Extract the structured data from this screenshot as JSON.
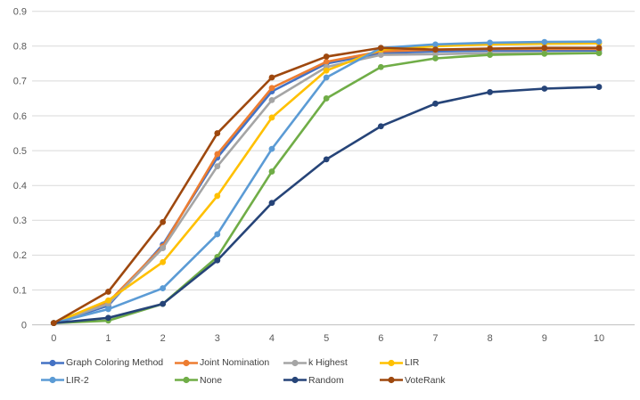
{
  "chart_data": {
    "type": "line",
    "title": "",
    "xlabel": "",
    "ylabel": "",
    "x": [
      0,
      1,
      2,
      3,
      4,
      5,
      6,
      7,
      8,
      9,
      10
    ],
    "xticks": [
      "0",
      "1",
      "2",
      "3",
      "4",
      "5",
      "6",
      "7",
      "8",
      "9",
      "10"
    ],
    "yticks": [
      "0",
      "0.1",
      "0.2",
      "0.3",
      "0.4",
      "0.5",
      "0.6",
      "0.7",
      "0.8",
      "0.9"
    ],
    "ylim": [
      0,
      0.9
    ],
    "grid": "horizontal",
    "marker": "circle",
    "legend_position": "bottom",
    "series": [
      {
        "name": "Graph Coloring Method",
        "color": "#4472C4",
        "values": [
          0.005,
          0.055,
          0.23,
          0.48,
          0.67,
          0.75,
          0.78,
          0.785,
          0.787,
          0.787,
          0.787
        ]
      },
      {
        "name": "Joint Nomination",
        "color": "#ED7D31",
        "values": [
          0.005,
          0.065,
          0.225,
          0.49,
          0.68,
          0.755,
          0.785,
          0.79,
          0.792,
          0.792,
          0.792
        ]
      },
      {
        "name": "k Highest",
        "color": "#A5A5A5",
        "values": [
          0.005,
          0.06,
          0.22,
          0.455,
          0.645,
          0.74,
          0.775,
          0.777,
          0.78,
          0.78,
          0.78
        ]
      },
      {
        "name": "LIR",
        "color": "#FFC000",
        "values": [
          0.005,
          0.07,
          0.18,
          0.37,
          0.595,
          0.73,
          0.79,
          0.8,
          0.805,
          0.807,
          0.808
        ]
      },
      {
        "name": "LIR-2",
        "color": "#5B9BD5",
        "values": [
          0.005,
          0.045,
          0.105,
          0.26,
          0.505,
          0.71,
          0.795,
          0.805,
          0.81,
          0.812,
          0.813
        ]
      },
      {
        "name": "None",
        "color": "#70AD47",
        "values": [
          0.005,
          0.012,
          0.06,
          0.195,
          0.44,
          0.65,
          0.74,
          0.765,
          0.775,
          0.778,
          0.78
        ]
      },
      {
        "name": "Random",
        "color": "#264478",
        "values": [
          0.005,
          0.02,
          0.06,
          0.185,
          0.35,
          0.475,
          0.57,
          0.635,
          0.668,
          0.678,
          0.683
        ]
      },
      {
        "name": "VoteRank",
        "color": "#9E480E",
        "values": [
          0.005,
          0.095,
          0.295,
          0.55,
          0.71,
          0.77,
          0.795,
          0.79,
          0.793,
          0.795,
          0.795
        ]
      }
    ],
    "legend_rows": [
      [
        "Graph Coloring Method",
        "Joint Nomination",
        "k Highest",
        "LIR"
      ],
      [
        "LIR-2",
        "None",
        "Random",
        "VoteRank"
      ]
    ],
    "style": {
      "grid_color": "#D9D9D9",
      "axis_line_color": "#BFBFBF",
      "tick_label_color": "#595959",
      "background": "#FFFFFF"
    }
  }
}
